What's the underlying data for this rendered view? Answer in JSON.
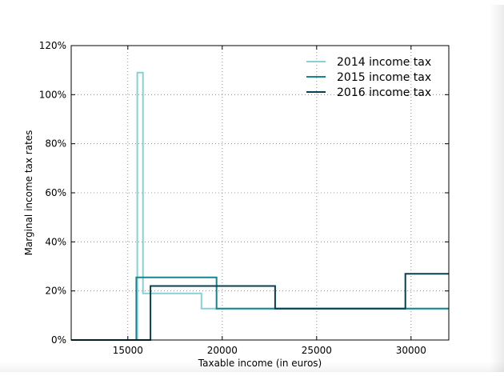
{
  "chart_data": {
    "type": "line",
    "title": "",
    "xlabel": "Taxable income (in euros)",
    "ylabel": "Marginal income tax rates",
    "xlim": [
      12000,
      32000
    ],
    "ylim": [
      0,
      120
    ],
    "x_ticks": [
      15000,
      20000,
      25000,
      30000
    ],
    "x_tick_labels": [
      "15000",
      "20000",
      "25000",
      "30000"
    ],
    "y_ticks": [
      0,
      20,
      40,
      60,
      80,
      100,
      120
    ],
    "y_tick_labels": [
      "0%",
      "20%",
      "40%",
      "60%",
      "80%",
      "100%",
      "120%"
    ],
    "grid": true,
    "legend_position": "top-right",
    "series": [
      {
        "name": "2014 income tax",
        "color": "#89d0d6",
        "points": [
          [
            12000,
            0
          ],
          [
            15500,
            0
          ],
          [
            15500,
            109
          ],
          [
            15800,
            109
          ],
          [
            15800,
            19
          ],
          [
            18900,
            19
          ],
          [
            18900,
            12.8
          ],
          [
            32000,
            12.8
          ]
        ]
      },
      {
        "name": "2015 income tax",
        "color": "#17858f",
        "points": [
          [
            12000,
            0
          ],
          [
            15450,
            0
          ],
          [
            15450,
            25.5
          ],
          [
            19700,
            25.5
          ],
          [
            19700,
            12.8
          ],
          [
            32000,
            12.8
          ]
        ]
      },
      {
        "name": "2016 income tax",
        "color": "#08414d",
        "points": [
          [
            12000,
            0
          ],
          [
            16200,
            0
          ],
          [
            16200,
            22
          ],
          [
            22800,
            22
          ],
          [
            22800,
            12.8
          ],
          [
            29700,
            12.8
          ],
          [
            29700,
            27
          ],
          [
            32000,
            27
          ]
        ]
      }
    ]
  }
}
